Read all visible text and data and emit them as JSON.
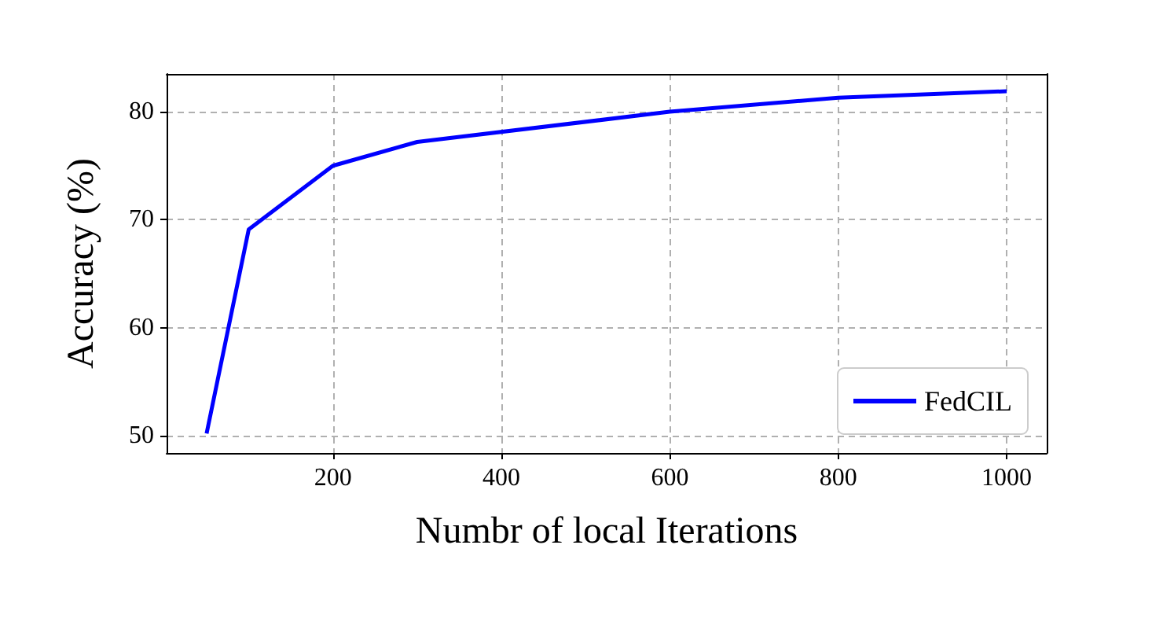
{
  "chart_data": {
    "type": "line",
    "xlabel": "Numbr of local Iterations",
    "ylabel": "Accuracy (%)",
    "x": [
      50,
      100,
      200,
      300,
      600,
      800,
      1000
    ],
    "series": [
      {
        "name": "FedCIL",
        "color": "#0000ff",
        "values": [
          50.2,
          69.1,
          75,
          77.2,
          80,
          81.3,
          81.9
        ]
      }
    ],
    "xlim": [
      2.5,
      1047.5
    ],
    "xticks": [
      200,
      400,
      600,
      800,
      1000
    ],
    "ylim": [
      48.4,
      83.5
    ],
    "yticks": [
      50,
      60,
      70,
      80
    ],
    "grid": true,
    "legend": "bottom right",
    "marker": "none",
    "line_style": "solid"
  }
}
